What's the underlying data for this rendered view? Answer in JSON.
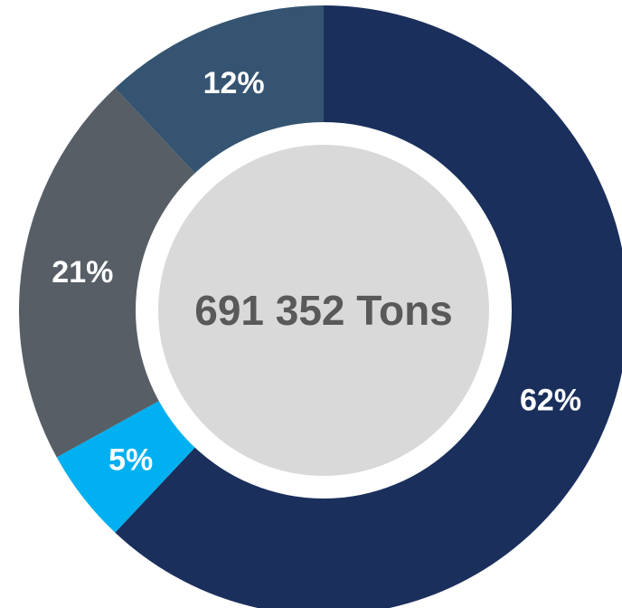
{
  "chart_data": {
    "type": "pie",
    "style": "donut",
    "center_text": "691 352 Tons",
    "slices": [
      {
        "label": "62%",
        "value": 62,
        "color": "#1b2f5c"
      },
      {
        "label": "5%",
        "value": 5,
        "color": "#00b0f0"
      },
      {
        "label": "21%",
        "value": 21,
        "color": "#575e66"
      },
      {
        "label": "12%",
        "value": 12,
        "color": "#355471"
      }
    ],
    "hole_color": "#d9d9d9",
    "legend": "none"
  }
}
